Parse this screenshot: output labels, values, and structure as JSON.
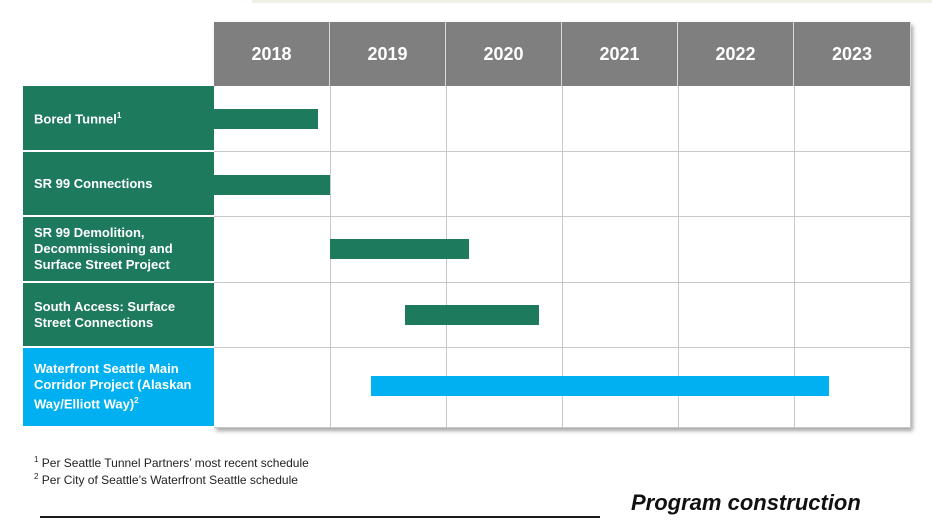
{
  "chart_data": {
    "type": "gantt",
    "categories": [
      "2018",
      "2019",
      "2020",
      "2021",
      "2022",
      "2023"
    ],
    "rows": [
      {
        "label": "Bored Tunnel",
        "marker": "1",
        "start": 2018.0,
        "end": 2018.9,
        "color": "#1e7a5c"
      },
      {
        "label": "SR 99 Connections",
        "marker": "",
        "start": 2018.0,
        "end": 2019.0,
        "color": "#1e7a5c"
      },
      {
        "label": "SR 99 Demolition, Decommissioning and Surface Street Project",
        "marker": "",
        "start": 2019.0,
        "end": 2020.2,
        "color": "#1e7a5c"
      },
      {
        "label": "South Access:  Surface Street Connections",
        "marker": "",
        "start": 2019.65,
        "end": 2020.8,
        "color": "#1e7a5c"
      },
      {
        "label": "Waterfront Seattle Main Corridor Project (Alaskan Way/Elliott Way)",
        "marker": "2",
        "start": 2019.35,
        "end": 2023.3,
        "color": "#00b0f0"
      }
    ],
    "header_color": "#7f7f7f",
    "label_colors": {
      "default": "#1e7a5c",
      "highlight": "#00b0f0"
    }
  },
  "footnotes": [
    {
      "marker": "1",
      "text": " Per Seattle Tunnel Partners’ most recent schedule"
    },
    {
      "marker": "2",
      "text": " Per City of Seattle’s Waterfront Seattle schedule"
    }
  ],
  "caption": "Program construction"
}
